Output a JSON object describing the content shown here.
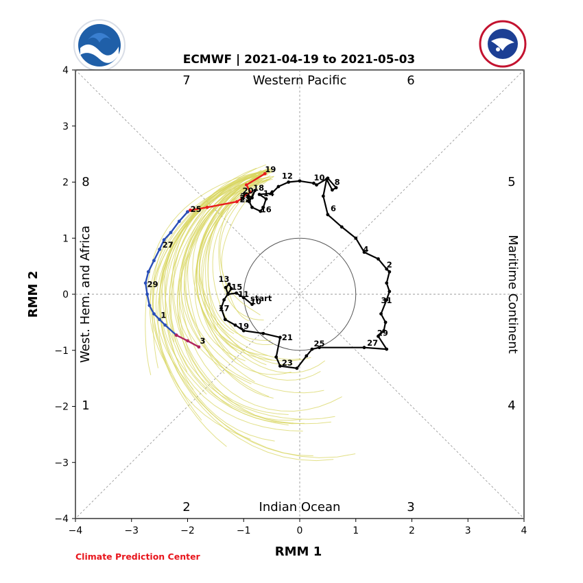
{
  "credit": "Climate Prediction Center",
  "logos": {
    "left_icon": "noaa-logo",
    "right_icon": "national-weather-service-logo",
    "right_text": "NATIONAL WEATHER SERVICE"
  },
  "colors": {
    "observed": "#000000",
    "forecast_week1": "#e81c1c",
    "forecast_week2": "#2a4fb8",
    "forecast_end": "#b0245e",
    "ensemble": "#d8d660",
    "credit": "#e8161d"
  },
  "chart_data": {
    "type": "line",
    "title": "ECMWF | 2021-04-19 to 2021-05-03",
    "xlabel": "RMM 1",
    "ylabel": "RMM 2",
    "xlim": [
      -4,
      4
    ],
    "ylim": [
      -4,
      4
    ],
    "xticks": [
      -4,
      -3,
      -2,
      -1,
      0,
      1,
      2,
      3,
      4
    ],
    "yticks": [
      -4,
      -3,
      -2,
      -1,
      0,
      1,
      2,
      3,
      4
    ],
    "grid": "dotted diagonals and axes",
    "unit_circle_radius": 1,
    "phases": [
      "1",
      "2",
      "3",
      "4",
      "5",
      "6",
      "7",
      "8"
    ],
    "regions": [
      "Western Pacific",
      "Maritime Continent",
      "Indian Ocean",
      "West. Hem. and Africa"
    ],
    "series": [
      {
        "name": "",
        "role": "observed",
        "points": [
          [
            -0.85,
            -0.18
          ],
          [
            -1.0,
            -0.06
          ],
          [
            -1.13,
            0.02
          ],
          [
            -1.28,
            0.0
          ],
          [
            -1.32,
            0.12
          ],
          [
            -1.26,
            0.18
          ],
          [
            -1.22,
            0.1
          ],
          [
            -1.35,
            -0.1
          ],
          [
            -1.4,
            -0.25
          ],
          [
            -1.33,
            -0.45
          ],
          [
            -1.15,
            -0.55
          ],
          [
            -1.0,
            -0.65
          ],
          [
            -0.65,
            -0.7
          ],
          [
            -0.35,
            -0.77
          ],
          [
            -0.42,
            -1.12
          ],
          [
            -0.35,
            -1.28
          ],
          [
            -0.05,
            -1.32
          ],
          [
            0.12,
            -1.1
          ],
          [
            0.22,
            -0.98
          ],
          [
            0.35,
            -0.95
          ],
          [
            1.15,
            -0.95
          ],
          [
            1.55,
            -0.98
          ],
          [
            1.4,
            -0.75
          ],
          [
            1.5,
            -0.65
          ],
          [
            1.53,
            -0.5
          ],
          [
            1.45,
            -0.35
          ],
          [
            1.55,
            -0.1
          ],
          [
            1.6,
            0.05
          ],
          [
            1.55,
            0.2
          ],
          [
            1.6,
            0.4
          ],
          [
            1.55,
            0.45
          ],
          [
            1.4,
            0.63
          ],
          [
            1.15,
            0.75
          ],
          [
            1.0,
            1.0
          ],
          [
            0.75,
            1.2
          ],
          [
            0.5,
            1.42
          ],
          [
            0.42,
            1.75
          ],
          [
            0.48,
            2.05
          ],
          [
            0.58,
            1.86
          ],
          [
            0.65,
            1.9
          ],
          [
            0.5,
            2.07
          ],
          [
            0.3,
            1.95
          ],
          [
            0.25,
            1.98
          ],
          [
            0.0,
            2.02
          ],
          [
            -0.2,
            2.0
          ],
          [
            -0.38,
            1.92
          ],
          [
            -0.5,
            1.8
          ],
          [
            -0.72,
            1.78
          ],
          [
            -0.6,
            1.7
          ],
          [
            -0.65,
            1.55
          ],
          [
            -0.7,
            1.48
          ],
          [
            -0.85,
            1.55
          ],
          [
            -0.9,
            1.65
          ],
          [
            -0.8,
            1.85
          ],
          [
            -0.85,
            1.72
          ],
          [
            -0.95,
            1.78
          ],
          [
            -0.9,
            1.68
          ]
        ],
        "labels": [
          {
            "text": "start",
            "x": -0.88,
            "y": -0.12
          },
          {
            "text": "10",
            "x": -0.88,
            "y": -0.18
          },
          {
            "text": "11",
            "x": -1.1,
            "y": -0.05
          },
          {
            "text": "13",
            "x": -1.45,
            "y": 0.22
          },
          {
            "text": "15",
            "x": -1.22,
            "y": 0.08
          },
          {
            "text": "17",
            "x": -1.45,
            "y": -0.3
          },
          {
            "text": "19",
            "x": -1.1,
            "y": -0.62
          },
          {
            "text": "21",
            "x": -0.32,
            "y": -0.82
          },
          {
            "text": "23",
            "x": -0.32,
            "y": -1.27
          },
          {
            "text": "25",
            "x": 0.25,
            "y": -0.93
          },
          {
            "text": "27",
            "x": 1.2,
            "y": -0.92
          },
          {
            "text": "29",
            "x": 1.38,
            "y": -0.74
          },
          {
            "text": "31",
            "x": 1.45,
            "y": -0.16
          },
          {
            "text": "2",
            "x": 1.55,
            "y": 0.48
          },
          {
            "text": "4",
            "x": 1.13,
            "y": 0.75
          },
          {
            "text": "6",
            "x": 0.55,
            "y": 1.48
          },
          {
            "text": "8",
            "x": 0.62,
            "y": 1.95
          },
          {
            "text": "10",
            "x": 0.25,
            "y": 2.03
          },
          {
            "text": "12",
            "x": -0.32,
            "y": 2.06
          },
          {
            "text": "14",
            "x": -0.65,
            "y": 1.75
          },
          {
            "text": "16",
            "x": -0.7,
            "y": 1.46
          },
          {
            "text": "18",
            "x": -0.83,
            "y": 1.85
          },
          {
            "text": "20",
            "x": -1.02,
            "y": 1.8
          },
          {
            "text": "22",
            "x": -1.07,
            "y": 1.64
          }
        ]
      },
      {
        "name": "",
        "role": "forecast_week1",
        "points": [
          [
            -0.62,
            2.15
          ],
          [
            -0.95,
            1.95
          ],
          [
            -0.88,
            1.82
          ],
          [
            -1.12,
            1.65
          ],
          [
            -1.65,
            1.55
          ],
          [
            -1.95,
            1.5
          ],
          [
            -2.0,
            1.47
          ]
        ],
        "labels": [
          {
            "text": "19",
            "x": -0.62,
            "y": 2.18
          },
          {
            "text": "21",
            "x": -1.06,
            "y": 1.7
          },
          {
            "text": "23",
            "x": -1.07,
            "y": 1.67
          },
          {
            "text": "25",
            "x": -1.95,
            "y": 1.47
          }
        ]
      },
      {
        "name": "",
        "role": "forecast_week2",
        "points": [
          [
            -2.0,
            1.47
          ],
          [
            -2.15,
            1.3
          ],
          [
            -2.3,
            1.1
          ],
          [
            -2.42,
            0.97
          ],
          [
            -2.5,
            0.8
          ],
          [
            -2.6,
            0.6
          ],
          [
            -2.7,
            0.4
          ],
          [
            -2.75,
            0.2
          ],
          [
            -2.72,
            0.0
          ],
          [
            -2.68,
            -0.2
          ],
          [
            -2.6,
            -0.35
          ],
          [
            -2.5,
            -0.45
          ],
          [
            -2.4,
            -0.55
          ],
          [
            -2.2,
            -0.73
          ]
        ],
        "labels": [
          {
            "text": "27",
            "x": -2.45,
            "y": 0.83
          },
          {
            "text": "29",
            "x": -2.72,
            "y": 0.13
          },
          {
            "text": "1",
            "x": -2.48,
            "y": -0.42
          }
        ]
      },
      {
        "name": "",
        "role": "forecast_end",
        "points": [
          [
            -2.2,
            -0.73
          ],
          [
            -2.0,
            -0.83
          ],
          [
            -1.8,
            -0.94
          ]
        ],
        "labels": [
          {
            "text": "3",
            "x": -1.78,
            "y": -0.88
          }
        ]
      }
    ]
  }
}
